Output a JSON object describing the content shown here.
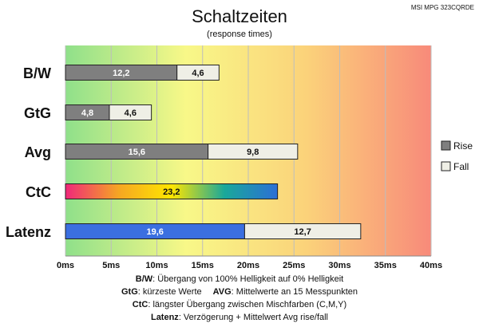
{
  "chart_data": {
    "type": "bar",
    "orientation": "horizontal",
    "stacked": true,
    "title": "Schaltzeiten",
    "subtitle": "(response times)",
    "monitor": "MSI MPG 323CQRDE",
    "categories": [
      "B/W",
      "GtG",
      "Avg",
      "CtC",
      "Latenz"
    ],
    "xlim": [
      0,
      40
    ],
    "x_ticks": [
      "0ms",
      "5ms",
      "10ms",
      "15ms",
      "20ms",
      "25ms",
      "30ms",
      "35ms",
      "40ms"
    ],
    "background_gradient": [
      "#8fe08a",
      "#f8f888",
      "#fbd27a",
      "#f88a7a"
    ],
    "grid": true,
    "legend_position": "right",
    "series": [
      {
        "name": "Rise",
        "color": "#7f7f7f",
        "values": [
          12.2,
          4.8,
          15.6,
          23.2,
          19.6
        ],
        "labels": [
          "12,2",
          "4,8",
          "15,6",
          "23,2",
          "19,6"
        ]
      },
      {
        "name": "Fall",
        "color": "#efefe6",
        "values": [
          4.6,
          4.6,
          9.8,
          null,
          12.7
        ],
        "labels": [
          "4,6",
          "4,6",
          "9,8",
          "",
          "12,7"
        ]
      }
    ],
    "special_bar_colors": {
      "CtC": [
        "#f0287a",
        "#f5a623",
        "#ffe600",
        "#1aa89a",
        "#2c6fd6"
      ],
      "Latenz": "#3b6fe0"
    },
    "notes": [
      {
        "bold": "B/W",
        "text": ":  Übergang von 100% Helligkeit auf 0% Helligkeit"
      },
      {
        "bold": "GtG",
        "text": ": kürzeste  Werte",
        "bold2": "AVG",
        "text2": ": Mittelwerte  an 15 Messpunkten"
      },
      {
        "bold": "CtC",
        "text": ": längster Übergang  zwischen Mischfarben  (C,M,Y)"
      },
      {
        "bold": "Latenz",
        "text": ": Verzögerung  + Mittelwert  Avg rise/fall"
      }
    ]
  }
}
